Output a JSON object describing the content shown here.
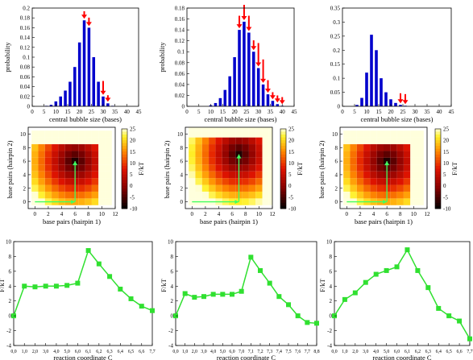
{
  "chart_data": [
    {
      "type": "bar",
      "panel": "histogram-1",
      "xlabel": "central bubble size (bases)",
      "ylabel": "probability",
      "xlim": [
        0,
        45
      ],
      "ylim": [
        0,
        0.2
      ],
      "xticks": [
        "0",
        "5",
        "10",
        "15",
        "20",
        "25",
        "30",
        "35",
        "40",
        "45"
      ],
      "yticks": [
        "0",
        "0.02",
        "0.04",
        "0.06",
        "0.08",
        "0.1",
        "0.12",
        "0.14",
        "0.16",
        "0.18",
        "0.2"
      ],
      "x": [
        6,
        8,
        10,
        12,
        14,
        16,
        18,
        20,
        22,
        24,
        26,
        28,
        30,
        32,
        34
      ],
      "values": [
        0.001,
        0.003,
        0.01,
        0.02,
        0.032,
        0.05,
        0.08,
        0.13,
        0.175,
        0.16,
        0.1,
        0.05,
        0.02,
        0.006,
        0.001
      ],
      "arrows": [
        {
          "x": 22,
          "len": 0.012
        },
        {
          "x": 24,
          "len": 0.014
        },
        {
          "x": 30,
          "len": 0.025
        },
        {
          "x": 32,
          "len": 0.01
        }
      ],
      "bar_color": "#0000cc",
      "arrow_color": "#ff0000"
    },
    {
      "type": "bar",
      "panel": "histogram-2",
      "xlabel": "central bubble size (bases)",
      "ylabel": "probability",
      "xlim": [
        0,
        45
      ],
      "ylim": [
        0,
        0.18
      ],
      "xticks": [
        "0",
        "5",
        "10",
        "15",
        "20",
        "25",
        "30",
        "35",
        "40",
        "45"
      ],
      "yticks": [
        "0",
        "0.02",
        "0.04",
        "0.06",
        "0.08",
        "0.1",
        "0.12",
        "0.14",
        "0.16",
        "0.18"
      ],
      "x": [
        10,
        12,
        14,
        16,
        18,
        20,
        22,
        24,
        26,
        28,
        30,
        32,
        34,
        36,
        38,
        40
      ],
      "values": [
        0.002,
        0.006,
        0.015,
        0.03,
        0.055,
        0.09,
        0.14,
        0.155,
        0.135,
        0.1,
        0.07,
        0.04,
        0.022,
        0.01,
        0.004,
        0.001
      ],
      "arrows": [
        {
          "x": 22,
          "len": 0.02
        },
        {
          "x": 24,
          "len": 0.025
        },
        {
          "x": 26,
          "len": 0.025
        },
        {
          "x": 28,
          "len": 0.015
        },
        {
          "x": 30,
          "len": 0.04
        },
        {
          "x": 32,
          "len": 0.04
        },
        {
          "x": 34,
          "len": 0.02
        },
        {
          "x": 36,
          "len": 0.01
        },
        {
          "x": 38,
          "len": 0.01
        },
        {
          "x": 40,
          "len": 0.01
        }
      ],
      "bar_color": "#0000cc",
      "arrow_color": "#ff0000"
    },
    {
      "type": "bar",
      "panel": "histogram-3",
      "xlabel": "central bubble size (bases)",
      "ylabel": "",
      "xlim": [
        0,
        45
      ],
      "ylim": [
        0,
        0.35
      ],
      "xticks": [
        "0",
        "5",
        "10",
        "15",
        "20",
        "25",
        "30",
        "35",
        "40",
        "45"
      ],
      "yticks": [
        "0",
        "0.05",
        "0.1",
        "0.15",
        "0.2",
        "0.25",
        "0.3",
        "0.35"
      ],
      "x": [
        6,
        8,
        10,
        12,
        14,
        16,
        18,
        20,
        22,
        24,
        26
      ],
      "values": [
        0.005,
        0.03,
        0.12,
        0.255,
        0.2,
        0.1,
        0.05,
        0.025,
        0.012,
        0.005,
        0.002
      ],
      "arrows": [
        {
          "x": 24,
          "len": 0.03
        },
        {
          "x": 26,
          "len": 0.03
        }
      ],
      "bar_color": "#0000cc",
      "arrow_color": "#ff0000"
    },
    {
      "type": "heatmap",
      "panel": "heatmap-1",
      "xlabel": "base pairs (hairpin 1)",
      "ylabel": "base pairs (hairpin 2)",
      "xlim": [
        -1,
        12
      ],
      "ylim": [
        -1,
        11
      ],
      "cells": 12,
      "xticks": [
        "0",
        "2",
        "4",
        "6",
        "8",
        "10",
        "12"
      ],
      "yticks": [
        "0",
        "2",
        "4",
        "6",
        "8",
        "10"
      ],
      "center": [
        6,
        6
      ],
      "fmin": -10,
      "fmax": 25,
      "fcenter": -8,
      "colorbar_label": "F/kT",
      "colorbar_ticks": [
        "25",
        "20",
        "15",
        "10",
        "5",
        "0",
        "-5",
        "-10"
      ],
      "path": [
        [
          0,
          0
        ],
        [
          6,
          0
        ],
        [
          6,
          6
        ]
      ],
      "path_color": "#40ff60"
    },
    {
      "type": "heatmap",
      "panel": "heatmap-2",
      "xlabel": "base pairs (hairpin 1)",
      "ylabel": "base pairs (hairpin 2)",
      "xlim": [
        -1,
        12
      ],
      "ylim": [
        -1,
        11
      ],
      "cells": 13,
      "xticks": [
        "0",
        "2",
        "4",
        "6",
        "8",
        "10",
        "12"
      ],
      "yticks": [
        "0",
        "2",
        "4",
        "6",
        "8",
        "10"
      ],
      "center": [
        7,
        7
      ],
      "fmin": -10,
      "fmax": 25,
      "fcenter": -8,
      "colorbar_label": "F/kT",
      "colorbar_ticks": [
        "25",
        "20",
        "15",
        "10",
        "5",
        "0",
        "-5",
        "-10"
      ],
      "path": [
        [
          0,
          0
        ],
        [
          7,
          0
        ],
        [
          7,
          7
        ]
      ],
      "path_color": "#40ff60"
    },
    {
      "type": "heatmap",
      "panel": "heatmap-3",
      "xlabel": "base pairs (hairpin 1)",
      "ylabel": "base pairs (hairpin 2)",
      "xlim": [
        -1,
        12
      ],
      "ylim": [
        -1,
        11
      ],
      "cells": 12,
      "xticks": [
        "0",
        "2",
        "4",
        "6",
        "8",
        "10",
        "12"
      ],
      "yticks": [
        "0",
        "2",
        "4",
        "6",
        "8",
        "10"
      ],
      "center": [
        6,
        6
      ],
      "fmin": -10,
      "fmax": 25,
      "fcenter": -8,
      "colorbar_label": "F/kT",
      "colorbar_ticks": [
        "25",
        "20",
        "15",
        "10",
        "5",
        "0",
        "-5",
        "-10"
      ],
      "path": [
        [
          0,
          0
        ],
        [
          6,
          0
        ],
        [
          6,
          6
        ]
      ],
      "path_color": "#40ff60"
    },
    {
      "type": "line",
      "panel": "profile-1",
      "xlabel": "reaction coordinate C",
      "ylabel": "F/kT",
      "ylim": [
        -4,
        10
      ],
      "yticks": [
        "-4",
        "-2",
        "0",
        "2",
        "4",
        "6",
        "8",
        "10"
      ],
      "categories": [
        "0,0",
        "1,0",
        "2,0",
        "3,0",
        "4,0",
        "5,0",
        "6,0",
        "6,1",
        "6,2",
        "6,3",
        "6,4",
        "6,5",
        "6,6",
        "7,7"
      ],
      "points_idx": [
        0,
        1,
        2,
        3,
        4,
        5,
        6,
        7,
        8,
        9,
        10,
        11,
        12,
        13
      ],
      "values": [
        0,
        4,
        3.9,
        4,
        4,
        4.1,
        4.4,
        8.8,
        7,
        5.3,
        3.6,
        2.3,
        1.3,
        0.7
      ],
      "color": "#30e030"
    },
    {
      "type": "line",
      "panel": "profile-2",
      "xlabel": "reaction coordinate C",
      "ylabel": "F/kT",
      "ylim": [
        -4,
        10
      ],
      "yticks": [
        "-4",
        "-2",
        "0",
        "2",
        "4",
        "6",
        "8",
        "10"
      ],
      "categories": [
        "0,0",
        "1,0",
        "2,0",
        "3,0",
        "4,0",
        "5,0",
        "6,0",
        "7,0",
        "7,1",
        "7,2",
        "7,3",
        "7,4",
        "7,5",
        "7,6",
        "7,7",
        "8,8"
      ],
      "points_idx": [
        0,
        1,
        2,
        3,
        4,
        5,
        6,
        7,
        8,
        9,
        10,
        11,
        12,
        13,
        14,
        15
      ],
      "values": [
        0,
        3,
        2.5,
        2.6,
        2.9,
        2.9,
        2.9,
        3.3,
        7.9,
        6.1,
        4.4,
        2.6,
        1.5,
        0,
        -0.9,
        -1
      ],
      "color": "#30e030"
    },
    {
      "type": "line",
      "panel": "profile-3",
      "xlabel": "reaction coordinate C",
      "ylabel": "F/kT",
      "ylim": [
        -4,
        10
      ],
      "yticks": [
        "-4",
        "-2",
        "0",
        "2",
        "4",
        "6",
        "8",
        "10"
      ],
      "categories": [
        "0,0",
        "1,0",
        "2,0",
        "3,0",
        "4,0",
        "5,0",
        "6,0",
        "6,1",
        "6,2",
        "6,3",
        "6,4",
        "6,5",
        "6,6",
        "7,7"
      ],
      "points_idx": [
        0,
        1,
        2,
        3,
        4,
        5,
        6,
        7,
        8,
        9,
        10,
        11,
        12,
        13
      ],
      "values": [
        0,
        2.2,
        3.1,
        4.5,
        5.6,
        6.1,
        6.6,
        8.9,
        6.1,
        3.8,
        1,
        0,
        -0.7,
        -3.1
      ],
      "color": "#30e030"
    }
  ]
}
